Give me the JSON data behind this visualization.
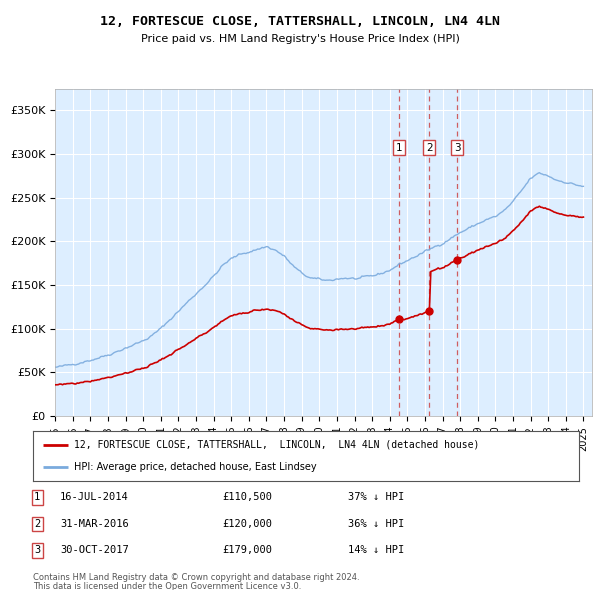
{
  "title": "12, FORTESCUE CLOSE, TATTERSHALL, LINCOLN, LN4 4LN",
  "subtitle": "Price paid vs. HM Land Registry's House Price Index (HPI)",
  "legend_line1": "12, FORTESCUE CLOSE, TATTERSHALL,  LINCOLN,  LN4 4LN (detached house)",
  "legend_line2": "HPI: Average price, detached house, East Lindsey",
  "footer1": "Contains HM Land Registry data © Crown copyright and database right 2024.",
  "footer2": "This data is licensed under the Open Government Licence v3.0.",
  "transactions": [
    {
      "label": "1",
      "date": "16-JUL-2014",
      "price": "£110,500",
      "change": "37% ↓ HPI",
      "x_year": 2014.54,
      "y_price": 110500
    },
    {
      "label": "2",
      "date": "31-MAR-2016",
      "price": "£120,000",
      "change": "36% ↓ HPI",
      "x_year": 2016.25,
      "y_price": 120000
    },
    {
      "label": "3",
      "date": "30-OCT-2017",
      "price": "£179,000",
      "change": "14% ↓ HPI",
      "x_year": 2017.83,
      "y_price": 179000
    }
  ],
  "hpi_color": "#7aaadd",
  "price_color": "#cc0000",
  "vline_color": "#cc4444",
  "background_color": "#ddeeff",
  "plot_bg": "#ddeeff",
  "ylim": [
    0,
    375000
  ],
  "xlim_start": 1995.0,
  "xlim_end": 2025.5,
  "yticks": [
    0,
    50000,
    100000,
    150000,
    200000,
    250000,
    300000,
    350000
  ],
  "ytick_labels": [
    "£0",
    "£50K",
    "£100K",
    "£150K",
    "£200K",
    "£250K",
    "£300K",
    "£350K"
  ],
  "xticks": [
    1995,
    1996,
    1997,
    1998,
    1999,
    2000,
    2001,
    2002,
    2003,
    2004,
    2005,
    2006,
    2007,
    2008,
    2009,
    2010,
    2011,
    2012,
    2013,
    2014,
    2015,
    2016,
    2017,
    2018,
    2019,
    2020,
    2021,
    2022,
    2023,
    2024,
    2025
  ],
  "hpi_anchors_x": [
    1995.0,
    1995.5,
    1996.0,
    1996.5,
    1997.0,
    1997.5,
    1998.0,
    1998.5,
    1999.0,
    1999.5,
    2000.0,
    2000.5,
    2001.0,
    2001.5,
    2002.0,
    2002.5,
    2003.0,
    2003.5,
    2004.0,
    2004.5,
    2005.0,
    2005.5,
    2006.0,
    2006.5,
    2007.0,
    2007.5,
    2008.0,
    2008.5,
    2009.0,
    2009.5,
    2010.0,
    2010.5,
    2011.0,
    2011.5,
    2012.0,
    2012.5,
    2013.0,
    2013.5,
    2014.0,
    2014.5,
    2015.0,
    2015.5,
    2016.0,
    2016.5,
    2017.0,
    2017.5,
    2018.0,
    2018.5,
    2019.0,
    2019.5,
    2020.0,
    2020.5,
    2021.0,
    2021.5,
    2022.0,
    2022.5,
    2023.0,
    2023.5,
    2024.0,
    2024.5,
    2025.0
  ],
  "hpi_anchors_y": [
    55000,
    57000,
    59000,
    62000,
    64000,
    67000,
    70000,
    74000,
    78000,
    82000,
    86000,
    92000,
    100000,
    110000,
    120000,
    130000,
    140000,
    150000,
    160000,
    172000,
    180000,
    185000,
    188000,
    191000,
    194000,
    190000,
    183000,
    172000,
    163000,
    158000,
    156000,
    155000,
    157000,
    158000,
    157000,
    158000,
    160000,
    163000,
    167000,
    173000,
    178000,
    183000,
    188000,
    193000,
    198000,
    204000,
    210000,
    215000,
    220000,
    225000,
    228000,
    235000,
    245000,
    258000,
    272000,
    278000,
    275000,
    270000,
    268000,
    265000,
    263000
  ]
}
